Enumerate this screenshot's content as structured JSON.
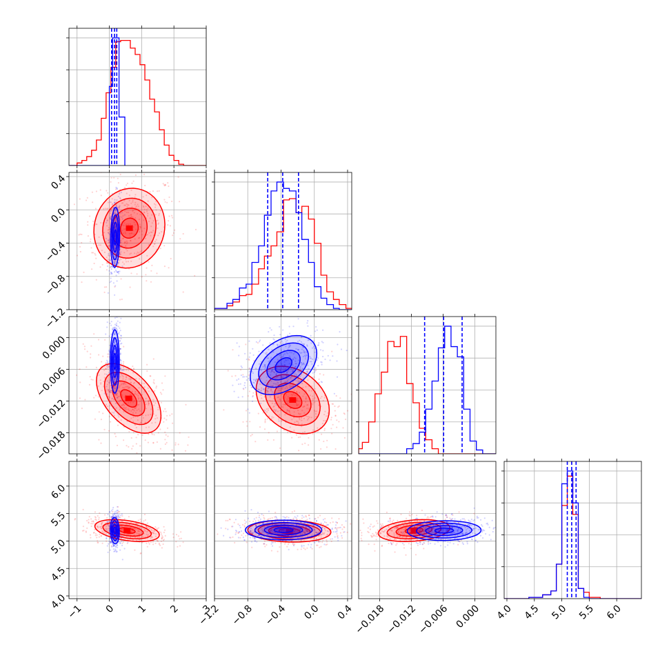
{
  "chart_data": {
    "type": "corner",
    "colors": {
      "blue": "#0000ff",
      "red": "#ff0000",
      "grid": "#b0b0b0",
      "frame": "#000000"
    },
    "grid": true,
    "series": [
      {
        "color": "#0000ff"
      },
      {
        "color": "#ff0000"
      }
    ],
    "parameters": [
      {
        "range": [
          -1.25,
          3.0
        ],
        "ticks": [
          -1,
          0,
          1,
          2,
          3
        ],
        "tick_labels": [
          "−1",
          "0",
          "1",
          "2",
          "3"
        ]
      },
      {
        "range": [
          -1.2,
          0.45
        ],
        "ticks": [
          -1.2,
          -0.8,
          -0.4,
          0.0,
          0.4
        ],
        "tick_labels": [
          "−1.2",
          "−0.8",
          "−0.4",
          "0.0",
          "0.4"
        ]
      },
      {
        "range": [
          -0.022,
          0.004
        ],
        "ticks": [
          -0.018,
          -0.012,
          -0.006,
          0.0
        ],
        "tick_labels": [
          "−0.018",
          "−0.012",
          "−0.006",
          "0.000"
        ]
      },
      {
        "range": [
          3.95,
          6.45
        ],
        "ticks": [
          4.0,
          4.5,
          5.0,
          5.5,
          6.0
        ],
        "tick_labels": [
          "4.0",
          "4.5",
          "5.0",
          "5.5",
          "6.0"
        ]
      }
    ],
    "histograms": [
      {
        "blue": {
          "bins": [
            -1.25,
            0.0,
            0.1,
            0.2,
            0.3,
            0.48
          ],
          "counts": [
            0,
            0.62,
            1.0,
            1.0,
            0.38
          ],
          "quantiles": [
            0.07,
            0.16,
            0.23
          ]
        },
        "red": {
          "bins": [
            -1.25,
            -1.0,
            -0.85,
            -0.7,
            -0.55,
            -0.4,
            -0.25,
            -0.1,
            0.05,
            0.2,
            0.35,
            0.5,
            0.65,
            0.8,
            0.95,
            1.1,
            1.25,
            1.4,
            1.55,
            1.7,
            1.85,
            2.0,
            2.15,
            2.3,
            3.0
          ],
          "counts": [
            0,
            0.02,
            0.04,
            0.07,
            0.12,
            0.2,
            0.37,
            0.57,
            0.77,
            0.97,
            0.98,
            0.98,
            0.92,
            0.87,
            0.79,
            0.67,
            0.52,
            0.42,
            0.28,
            0.16,
            0.08,
            0.04,
            0.01,
            0
          ]
        }
      },
      {
        "blue": {
          "bins": [
            -1.2,
            -1.05,
            -0.98,
            -0.9,
            -0.82,
            -0.75,
            -0.67,
            -0.6,
            -0.52,
            -0.45,
            -0.37,
            -0.3,
            -0.22,
            -0.15,
            -0.07,
            0.0,
            0.08,
            0.15,
            0.23,
            0.3,
            0.45
          ],
          "counts": [
            0.01,
            0.05,
            0.08,
            0.17,
            0.2,
            0.37,
            0.5,
            0.74,
            0.93,
            1.0,
            0.95,
            0.93,
            0.76,
            0.55,
            0.37,
            0.18,
            0.09,
            0.04,
            0.01,
            0
          ]
        },
        "red": {
          "bins": [
            -1.2,
            -1.05,
            -0.98,
            -0.9,
            -0.82,
            -0.75,
            -0.67,
            -0.6,
            -0.52,
            -0.45,
            -0.37,
            -0.3,
            -0.22,
            -0.15,
            -0.07,
            0.0,
            0.08,
            0.15,
            0.23,
            0.3,
            0.38,
            0.45
          ],
          "counts": [
            0.01,
            0.03,
            0.06,
            0.11,
            0.12,
            0.2,
            0.32,
            0.42,
            0.5,
            0.61,
            0.86,
            0.87,
            0.76,
            0.81,
            0.71,
            0.52,
            0.27,
            0.14,
            0.08,
            0.04,
            0.01
          ]
        },
        "blue_quantiles": [
          -0.56,
          -0.38,
          -0.19
        ]
      },
      {
        "blue": {
          "bins": [
            -0.022,
            -0.0129,
            -0.0117,
            -0.0105,
            -0.0093,
            -0.0081,
            -0.0069,
            -0.0057,
            -0.0045,
            -0.0033,
            -0.0021,
            -0.0009,
            0.0003,
            0.0015,
            0.004
          ],
          "counts": [
            0,
            0.04,
            0.08,
            0.17,
            0.35,
            0.57,
            0.83,
            1.0,
            0.84,
            0.76,
            0.35,
            0.1,
            0.03,
            0
          ]
        },
        "red": {
          "bins": [
            -0.022,
            -0.0213,
            -0.0201,
            -0.0189,
            -0.0177,
            -0.0165,
            -0.0153,
            -0.0141,
            -0.0129,
            -0.0117,
            -0.0105,
            -0.0093,
            -0.0081,
            -0.0069,
            0.004
          ],
          "counts": [
            0.04,
            0.09,
            0.25,
            0.47,
            0.64,
            0.88,
            0.84,
            0.92,
            0.55,
            0.4,
            0.2,
            0.11,
            0.04,
            0
          ]
        },
        "blue_quantiles": [
          -0.0095,
          -0.0059,
          -0.0024
        ]
      },
      {
        "blue": {
          "bins": [
            3.95,
            4.4,
            4.65,
            4.8,
            4.9,
            5.0,
            5.1,
            5.2,
            5.3,
            5.4,
            5.5,
            6.45
          ],
          "counts": [
            0,
            0.01,
            0.03,
            0.06,
            0.27,
            0.9,
            1.0,
            0.75,
            0.08,
            0.01,
            0
          ]
        },
        "red": {
          "bins": [
            3.95,
            4.4,
            4.65,
            4.8,
            4.9,
            5.0,
            5.1,
            5.2,
            5.3,
            5.4,
            5.5,
            5.7,
            6.45
          ],
          "counts": [
            0,
            0.01,
            0.03,
            0.06,
            0.27,
            0.73,
            0.96,
            0.66,
            0.08,
            0.05,
            0.01,
            0
          ]
        },
        "blue_quantiles": [
          5.1,
          5.18,
          5.26
        ]
      }
    ],
    "scatter_panels": [
      {
        "xi": 0,
        "yi": 1,
        "red": {
          "mean": [
            0.62,
            -0.22
          ],
          "sd": [
            0.55,
            0.24
          ],
          "rho": 0.08
        },
        "blue": {
          "mean": [
            0.18,
            -0.33
          ],
          "sd": [
            0.07,
            0.18
          ],
          "rho": 0.1
        }
      },
      {
        "xi": 0,
        "yi": 2,
        "red": {
          "mean": [
            0.6,
            -0.0115
          ],
          "sd": [
            0.5,
            0.0033
          ],
          "rho": -0.5
        },
        "blue": {
          "mean": [
            0.17,
            -0.0045
          ],
          "sd": [
            0.07,
            0.003
          ],
          "rho": 0.0
        }
      },
      {
        "xi": 1,
        "yi": 2,
        "red": {
          "mean": [
            -0.26,
            -0.0118
          ],
          "sd": [
            0.22,
            0.0032
          ],
          "rho": -0.3
        },
        "blue": {
          "mean": [
            -0.37,
            -0.0052
          ],
          "sd": [
            0.2,
            0.0028
          ],
          "rho": 0.4
        }
      },
      {
        "xi": 0,
        "yi": 3,
        "red": {
          "mean": [
            0.55,
            5.19
          ],
          "sd": [
            0.5,
            0.1
          ],
          "rho": -0.4
        },
        "blue": {
          "mean": [
            0.17,
            5.19
          ],
          "sd": [
            0.07,
            0.12
          ],
          "rho": -0.1
        }
      },
      {
        "xi": 1,
        "yi": 3,
        "red": {
          "mean": [
            -0.3,
            5.18
          ],
          "sd": [
            0.25,
            0.1
          ],
          "rho": -0.1
        },
        "blue": {
          "mean": [
            -0.37,
            5.2
          ],
          "sd": [
            0.23,
            0.09
          ],
          "rho": 0.0
        }
      },
      {
        "xi": 2,
        "yi": 3,
        "red": {
          "mean": [
            -0.0115,
            5.19
          ],
          "sd": [
            0.0034,
            0.1
          ],
          "rho": 0.25
        },
        "blue": {
          "mean": [
            -0.0058,
            5.19
          ],
          "sd": [
            0.0035,
            0.09
          ],
          "rho": 0.05
        }
      }
    ],
    "contour_levels_sigma": [
      0.5,
      1.0,
      1.5,
      2.0
    ]
  }
}
